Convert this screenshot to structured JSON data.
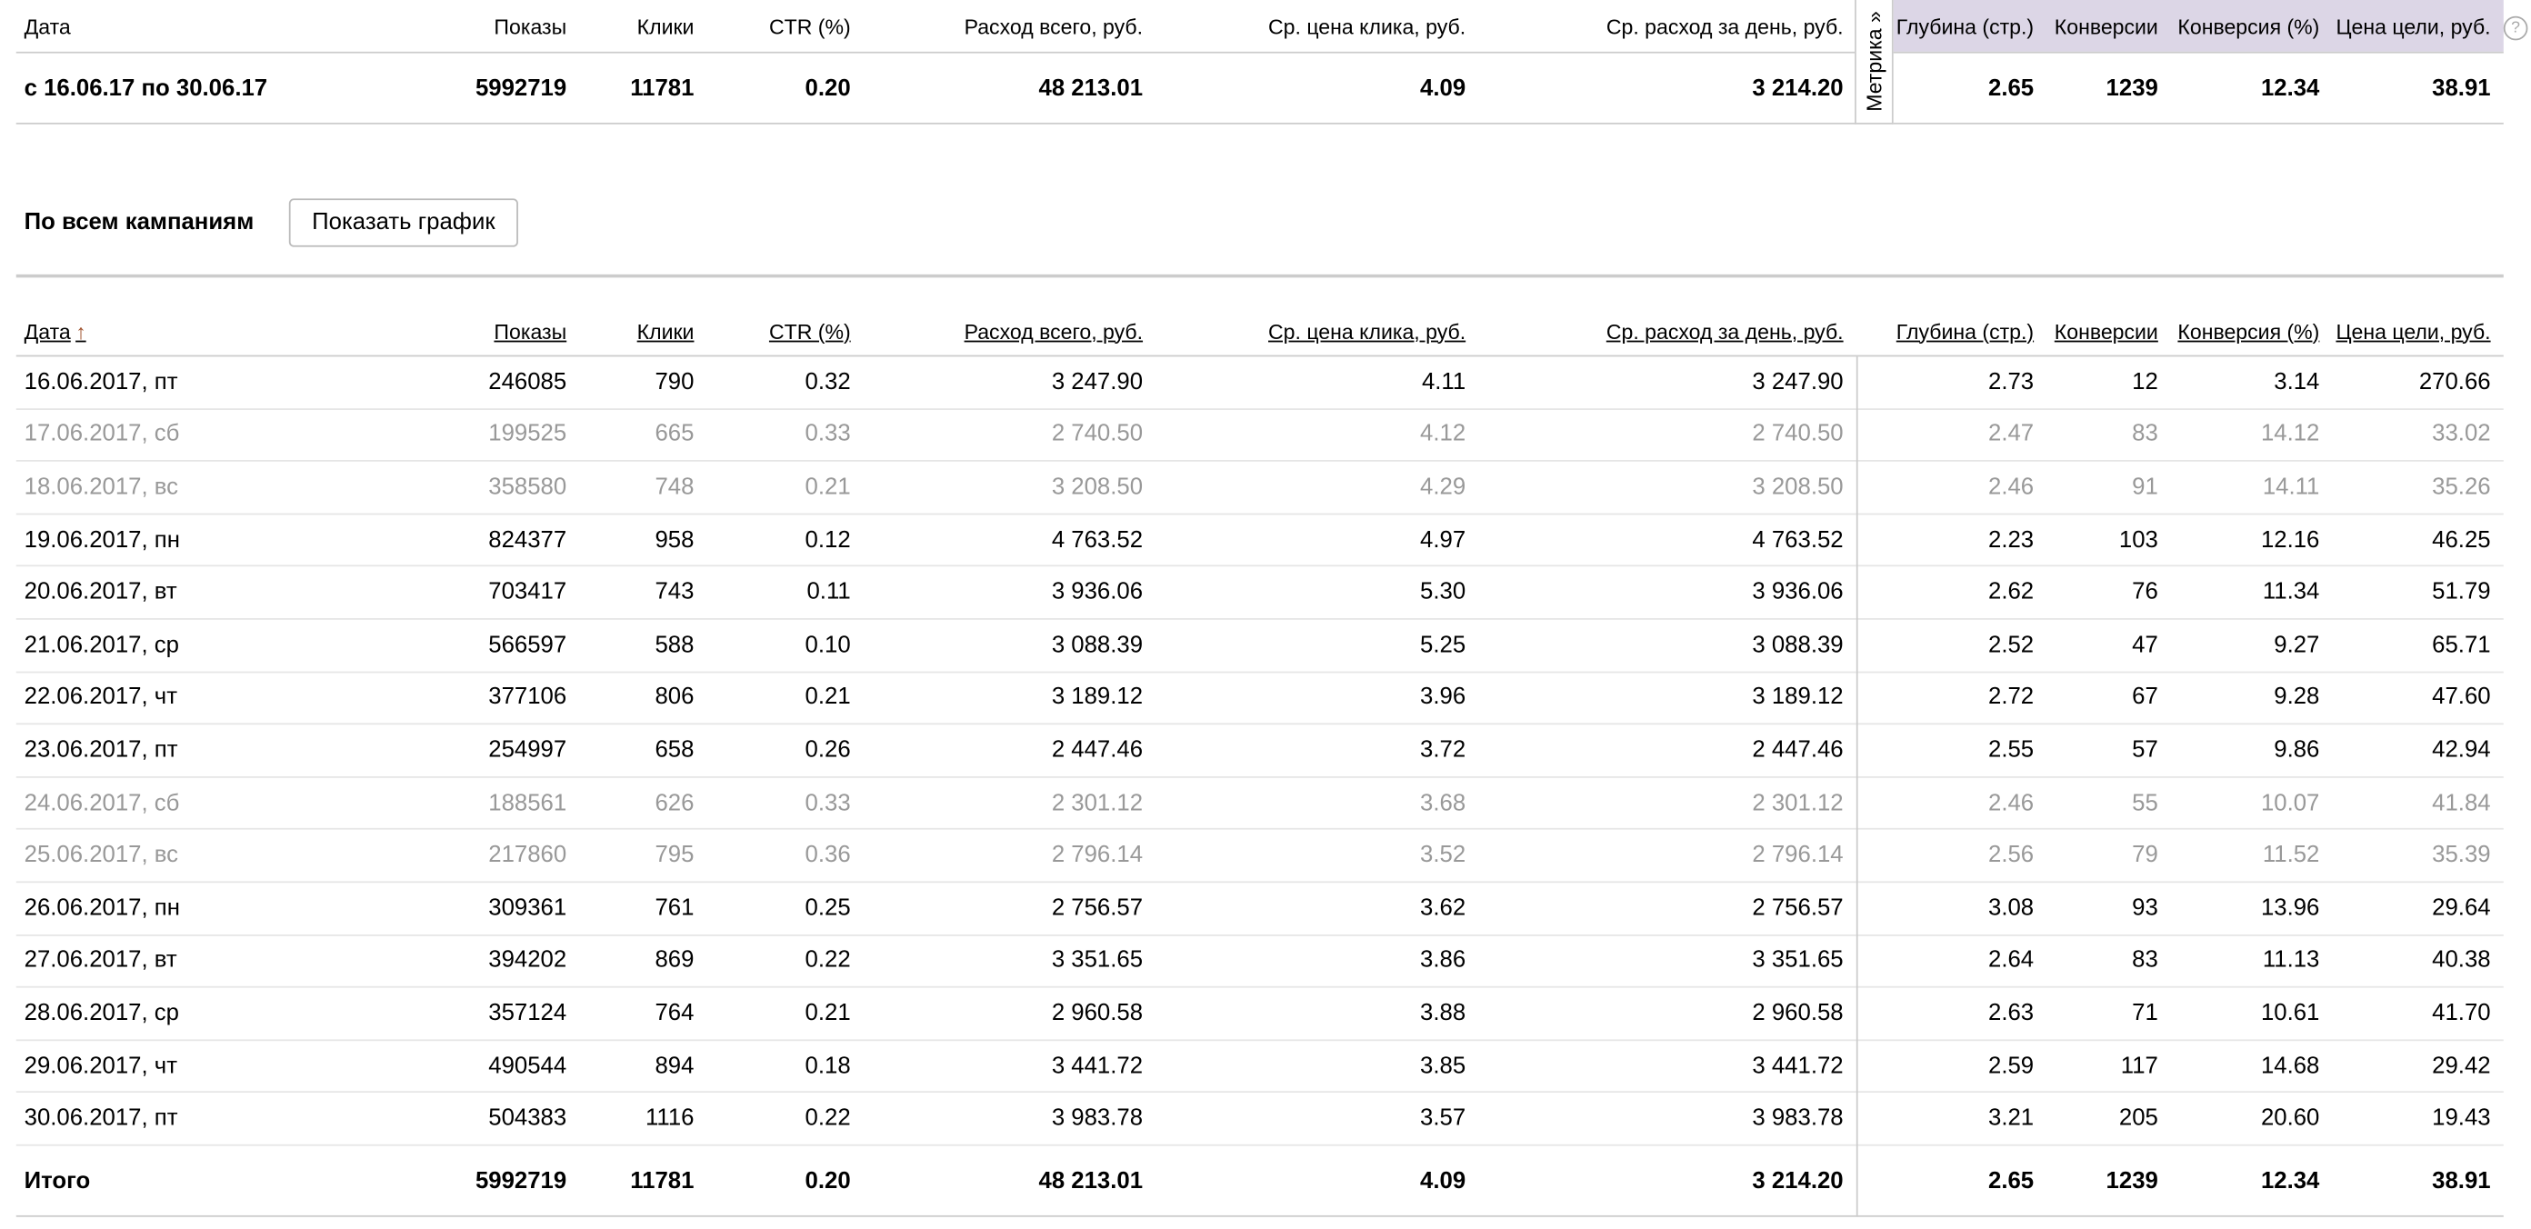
{
  "columns": [
    "Дата",
    "Показы",
    "Клики",
    "CTR (%)",
    "Расход всего, руб.",
    "Ср. цена клика, руб.",
    "Ср. расход за день, руб.",
    "Глубина (стр.)",
    "Конверсии",
    "Конверсия (%)",
    "Цена цели, руб."
  ],
  "sort_arrow": "↑",
  "metrika_tab": "Метрика »",
  "help_icon": "?",
  "summary": {
    "cells": [
      "с 16.06.17 по 30.06.17",
      "5992719",
      "11781",
      "0.20",
      "48 213.01",
      "4.09",
      "3 214.20",
      "2.65",
      "1239",
      "12.34",
      "38.91"
    ]
  },
  "section": {
    "title": "По всем кампаниям",
    "show_chart_button": "Показать график"
  },
  "rows": [
    {
      "weekend": false,
      "cells": [
        "16.06.2017, пт",
        "246085",
        "790",
        "0.32",
        "3 247.90",
        "4.11",
        "3 247.90",
        "2.73",
        "12",
        "3.14",
        "270.66"
      ]
    },
    {
      "weekend": true,
      "cells": [
        "17.06.2017, сб",
        "199525",
        "665",
        "0.33",
        "2 740.50",
        "4.12",
        "2 740.50",
        "2.47",
        "83",
        "14.12",
        "33.02"
      ]
    },
    {
      "weekend": true,
      "cells": [
        "18.06.2017, вс",
        "358580",
        "748",
        "0.21",
        "3 208.50",
        "4.29",
        "3 208.50",
        "2.46",
        "91",
        "14.11",
        "35.26"
      ]
    },
    {
      "weekend": false,
      "cells": [
        "19.06.2017, пн",
        "824377",
        "958",
        "0.12",
        "4 763.52",
        "4.97",
        "4 763.52",
        "2.23",
        "103",
        "12.16",
        "46.25"
      ]
    },
    {
      "weekend": false,
      "cells": [
        "20.06.2017, вт",
        "703417",
        "743",
        "0.11",
        "3 936.06",
        "5.30",
        "3 936.06",
        "2.62",
        "76",
        "11.34",
        "51.79"
      ]
    },
    {
      "weekend": false,
      "cells": [
        "21.06.2017, ср",
        "566597",
        "588",
        "0.10",
        "3 088.39",
        "5.25",
        "3 088.39",
        "2.52",
        "47",
        "9.27",
        "65.71"
      ]
    },
    {
      "weekend": false,
      "cells": [
        "22.06.2017, чт",
        "377106",
        "806",
        "0.21",
        "3 189.12",
        "3.96",
        "3 189.12",
        "2.72",
        "67",
        "9.28",
        "47.60"
      ]
    },
    {
      "weekend": false,
      "cells": [
        "23.06.2017, пт",
        "254997",
        "658",
        "0.26",
        "2 447.46",
        "3.72",
        "2 447.46",
        "2.55",
        "57",
        "9.86",
        "42.94"
      ]
    },
    {
      "weekend": true,
      "cells": [
        "24.06.2017, сб",
        "188561",
        "626",
        "0.33",
        "2 301.12",
        "3.68",
        "2 301.12",
        "2.46",
        "55",
        "10.07",
        "41.84"
      ]
    },
    {
      "weekend": true,
      "cells": [
        "25.06.2017, вс",
        "217860",
        "795",
        "0.36",
        "2 796.14",
        "3.52",
        "2 796.14",
        "2.56",
        "79",
        "11.52",
        "35.39"
      ]
    },
    {
      "weekend": false,
      "cells": [
        "26.06.2017, пн",
        "309361",
        "761",
        "0.25",
        "2 756.57",
        "3.62",
        "2 756.57",
        "3.08",
        "93",
        "13.96",
        "29.64"
      ]
    },
    {
      "weekend": false,
      "cells": [
        "27.06.2017, вт",
        "394202",
        "869",
        "0.22",
        "3 351.65",
        "3.86",
        "3 351.65",
        "2.64",
        "83",
        "11.13",
        "40.38"
      ]
    },
    {
      "weekend": false,
      "cells": [
        "28.06.2017, ср",
        "357124",
        "764",
        "0.21",
        "2 960.58",
        "3.88",
        "2 960.58",
        "2.63",
        "71",
        "10.61",
        "41.70"
      ]
    },
    {
      "weekend": false,
      "cells": [
        "29.06.2017, чт",
        "490544",
        "894",
        "0.18",
        "3 441.72",
        "3.85",
        "3 441.72",
        "2.59",
        "117",
        "14.68",
        "29.42"
      ]
    },
    {
      "weekend": false,
      "cells": [
        "30.06.2017, пт",
        "504383",
        "1116",
        "0.22",
        "3 983.78",
        "3.57",
        "3 983.78",
        "3.21",
        "205",
        "20.60",
        "19.43"
      ]
    }
  ],
  "total": {
    "cells": [
      "Итого",
      "5992719",
      "11781",
      "0.20",
      "48 213.01",
      "4.09",
      "3 214.20",
      "2.65",
      "1239",
      "12.34",
      "38.91"
    ]
  }
}
